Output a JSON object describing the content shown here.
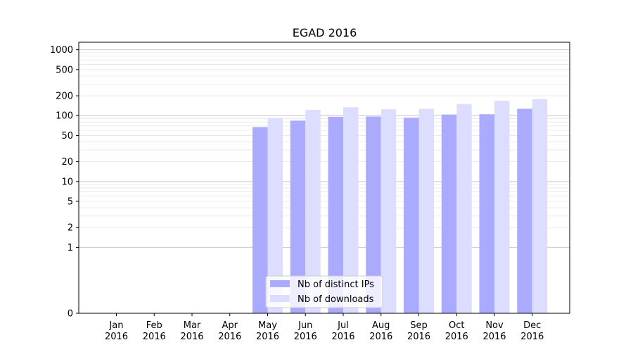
{
  "chart_data": {
    "type": "bar",
    "title": "EGAD 2016",
    "xlabel": "",
    "ylabel": "",
    "y_scale": "symlog",
    "ylim": [
      0,
      1300
    ],
    "y_ticks": [
      0,
      1,
      2,
      5,
      10,
      20,
      50,
      100,
      200,
      500,
      1000
    ],
    "categories": [
      {
        "month": "Jan",
        "year": "2016"
      },
      {
        "month": "Feb",
        "year": "2016"
      },
      {
        "month": "Mar",
        "year": "2016"
      },
      {
        "month": "Apr",
        "year": "2016"
      },
      {
        "month": "May",
        "year": "2016"
      },
      {
        "month": "Jun",
        "year": "2016"
      },
      {
        "month": "Jul",
        "year": "2016"
      },
      {
        "month": "Aug",
        "year": "2016"
      },
      {
        "month": "Sep",
        "year": "2016"
      },
      {
        "month": "Oct",
        "year": "2016"
      },
      {
        "month": "Nov",
        "year": "2016"
      },
      {
        "month": "Dec",
        "year": "2016"
      }
    ],
    "series": [
      {
        "name": "Nb of distinct IPs",
        "color": "#aaaaff",
        "values": [
          0,
          0,
          0,
          0,
          67,
          84,
          96,
          97,
          93,
          104,
          105,
          127
        ]
      },
      {
        "name": "Nb of downloads",
        "color": "#ddddff",
        "values": [
          0,
          0,
          0,
          0,
          92,
          122,
          134,
          125,
          127,
          150,
          168,
          177
        ]
      }
    ],
    "legend_position": "lower-center",
    "grid": true
  }
}
